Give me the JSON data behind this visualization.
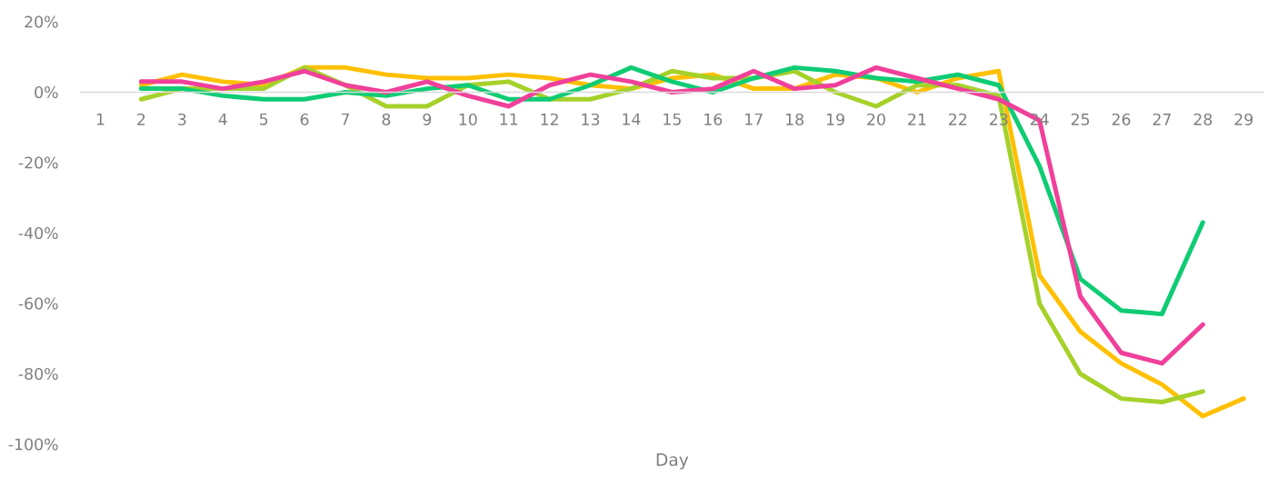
{
  "chart_data": {
    "type": "line",
    "xlabel": "Day",
    "categories": [
      "1",
      "2",
      "3",
      "4",
      "5",
      "6",
      "7",
      "8",
      "9",
      "10",
      "11",
      "12",
      "13",
      "14",
      "15",
      "16",
      "17",
      "18",
      "19",
      "20",
      "21",
      "22",
      "23",
      "24",
      "25",
      "26",
      "27",
      "28",
      "29"
    ],
    "series": [
      {
        "color": "#ffc000",
        "values": [
          null,
          2,
          5,
          3,
          2,
          7,
          7,
          5,
          4,
          4,
          5,
          4,
          2,
          1,
          4,
          5,
          1,
          1,
          5,
          4,
          0,
          4,
          6,
          -52,
          -68,
          -77,
          -83,
          -92,
          -87
        ]
      },
      {
        "color": "#a5d12a",
        "values": [
          null,
          -2,
          1,
          1,
          1,
          7,
          2,
          -4,
          -4,
          2,
          3,
          -2,
          -2,
          1,
          6,
          4,
          4,
          6,
          0,
          -4,
          2,
          2,
          -1,
          -60,
          -80,
          -87,
          -88,
          -85,
          null
        ]
      },
      {
        "color": "#0fcc74",
        "values": [
          null,
          1,
          1,
          -1,
          -2,
          -2,
          0,
          -1,
          1,
          2,
          -2,
          -2,
          2,
          7,
          3,
          0,
          4,
          7,
          6,
          4,
          3,
          5,
          2,
          -21,
          -53,
          -62,
          -63,
          -37,
          null
        ]
      },
      {
        "color": "#f0409a",
        "values": [
          null,
          3,
          3,
          1,
          3,
          6,
          2,
          0,
          3,
          -1,
          -4,
          2,
          5,
          3,
          0,
          1,
          6,
          1,
          2,
          7,
          4,
          1,
          -2,
          -8,
          -58,
          -74,
          -77,
          -66,
          null
        ]
      }
    ],
    "ylim": [
      -100,
      20
    ],
    "yticks": [
      {
        "value": -100,
        "label": "-100%"
      },
      {
        "value": -80,
        "label": "-80%"
      },
      {
        "value": -60,
        "label": "-60%"
      },
      {
        "value": -40,
        "label": "-40%"
      },
      {
        "value": -20,
        "label": "-20%"
      },
      {
        "value": 0,
        "label": "0%"
      },
      {
        "value": 20,
        "label": "20%"
      }
    ],
    "line_style": "solid"
  }
}
